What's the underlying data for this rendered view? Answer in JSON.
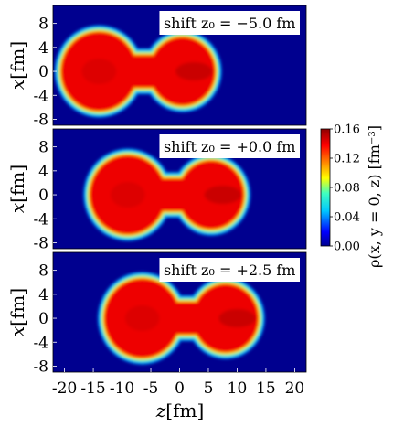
{
  "chart_data": {
    "type": "heatmap",
    "panels": [
      {
        "label": "shift $z_0 = -5.0\\,$fm",
        "label_text": "shift z₀ = −5.0 fm",
        "shift_fm": -5.0
      },
      {
        "label_text": "shift z₀ = +0.0 fm",
        "shift_fm": 0.0
      },
      {
        "label_text": "shift z₀ = +2.5 fm",
        "shift_fm": 2.5
      }
    ],
    "xaxis": {
      "label": "z[fm]",
      "range": [
        -22,
        22
      ],
      "ticks": [
        -20,
        -15,
        -10,
        -5,
        0,
        5,
        10,
        15,
        20
      ],
      "tick_labels": [
        "-20",
        "-15",
        "-10",
        "-5",
        "0",
        "5",
        "10",
        "15",
        "20"
      ]
    },
    "yaxis": {
      "label": "x[fm]",
      "range": [
        -9,
        11
      ],
      "ticks": [
        8,
        4,
        0,
        -4,
        -8
      ],
      "tick_labels": [
        "8",
        "4",
        "0",
        "-4",
        "-8"
      ]
    },
    "colorbar": {
      "label": "ρ(x, y = 0, z) [fm⁻³]",
      "range": [
        0.0,
        0.16
      ],
      "ticks": [
        0.16,
        0.12,
        0.08,
        0.04,
        0.0
      ],
      "tick_labels": [
        "0.16",
        "0.12",
        "0.08",
        "0.04",
        "0.00"
      ]
    },
    "shape": {
      "left_lobe": {
        "z": -9,
        "radius_fm": 6.5
      },
      "right_lobe": {
        "z": 5.5,
        "radius_fm": 5.6
      },
      "neck_radius_fm": 2.6,
      "left_end_z": -16,
      "right_end_z": 11.6
    },
    "colors": {
      "background": "#00008f",
      "peak": "#b00000"
    }
  }
}
